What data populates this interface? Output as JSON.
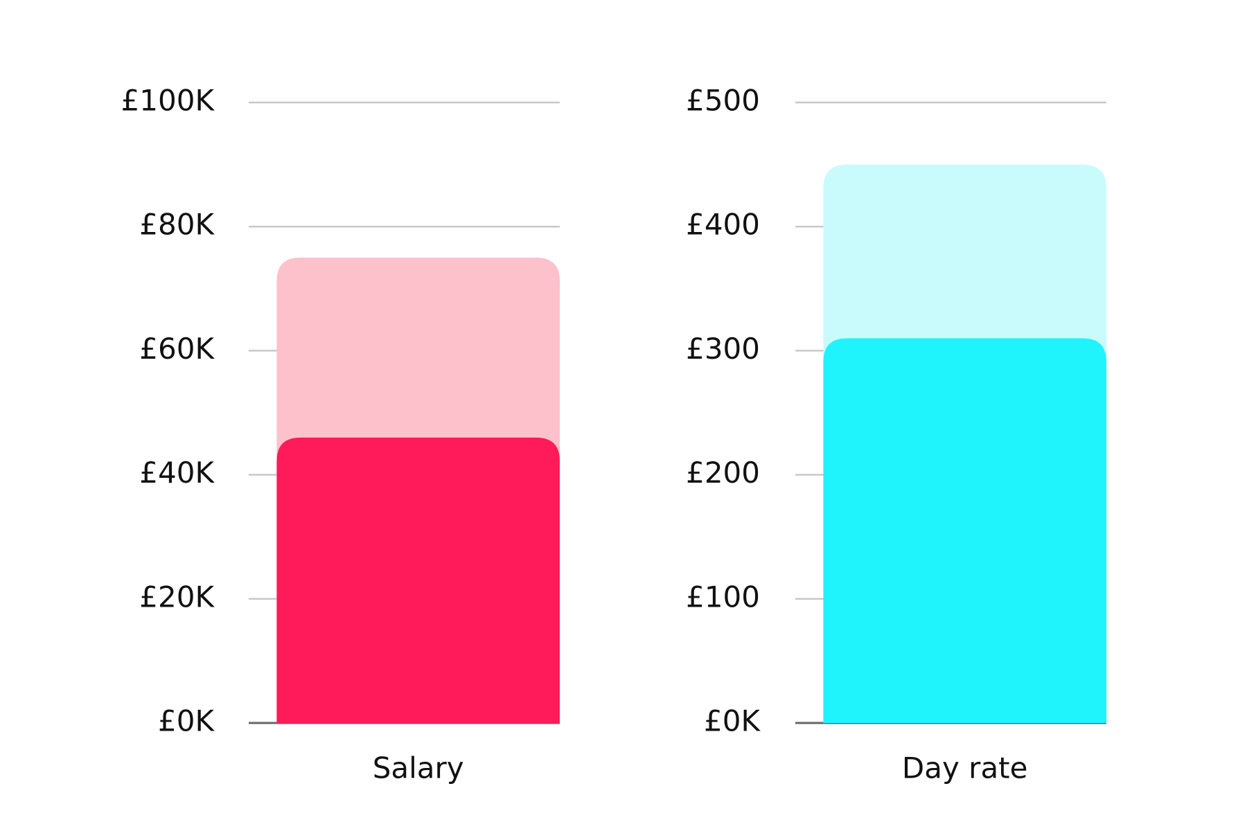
{
  "chart_data": [
    {
      "type": "bar",
      "categories": [
        "Salary"
      ],
      "series": [
        {
          "color": "#fdc1cc",
          "values": [
            75000
          ]
        },
        {
          "color": "#ff1a5a",
          "values": [
            46000
          ]
        }
      ],
      "ylim": [
        0,
        100000
      ],
      "yticks": [
        {
          "value": 0,
          "label": "£0K"
        },
        {
          "value": 20000,
          "label": "£20K"
        },
        {
          "value": 40000,
          "label": "£40K"
        },
        {
          "value": 60000,
          "label": "£60K"
        },
        {
          "value": 80000,
          "label": "£80K"
        },
        {
          "value": 100000,
          "label": "£100K"
        }
      ],
      "grid": true
    },
    {
      "type": "bar",
      "categories": [
        "Day rate"
      ],
      "series": [
        {
          "color": "#c9fbfd",
          "values": [
            450
          ]
        },
        {
          "color": "#1ff3fc",
          "values": [
            310
          ]
        }
      ],
      "ylim": [
        0,
        500
      ],
      "yticks": [
        {
          "value": 0,
          "label": "£0K"
        },
        {
          "value": 100,
          "label": "£100"
        },
        {
          "value": 200,
          "label": "£200"
        },
        {
          "value": 300,
          "label": "£300"
        },
        {
          "value": 400,
          "label": "£400"
        },
        {
          "value": 500,
          "label": "£500"
        }
      ],
      "grid": true
    }
  ]
}
